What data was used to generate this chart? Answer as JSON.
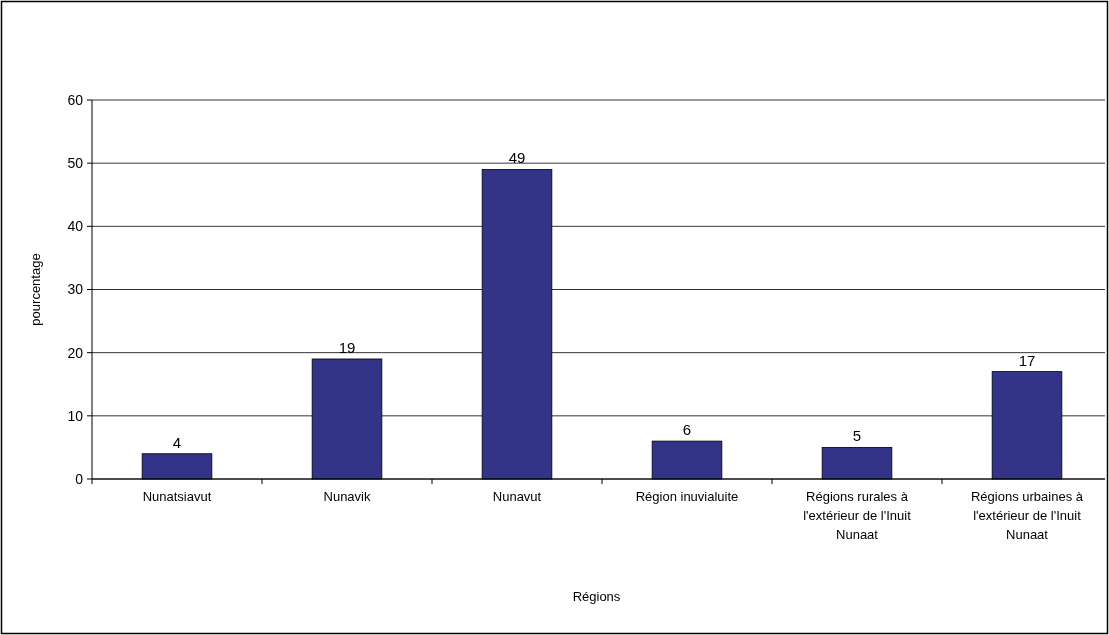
{
  "chart_data": {
    "type": "bar",
    "xlabel": "Régions",
    "ylabel": "pourcentage",
    "categories": [
      "Nunatsiavut",
      "Nunavik",
      "Nunavut",
      "Région inuvialuite",
      "Régions rurales à l'extérieur de l'Inuit Nunaat",
      "Régions urbaines à l'extérieur de l'Inuit Nunaat"
    ],
    "values": [
      4,
      19,
      49,
      6,
      5,
      17
    ],
    "color": "#333387",
    "ylim": [
      0,
      60
    ],
    "yticks": [
      0,
      10,
      20,
      30,
      40,
      50,
      60
    ],
    "grid": "y",
    "data_labels": true
  }
}
